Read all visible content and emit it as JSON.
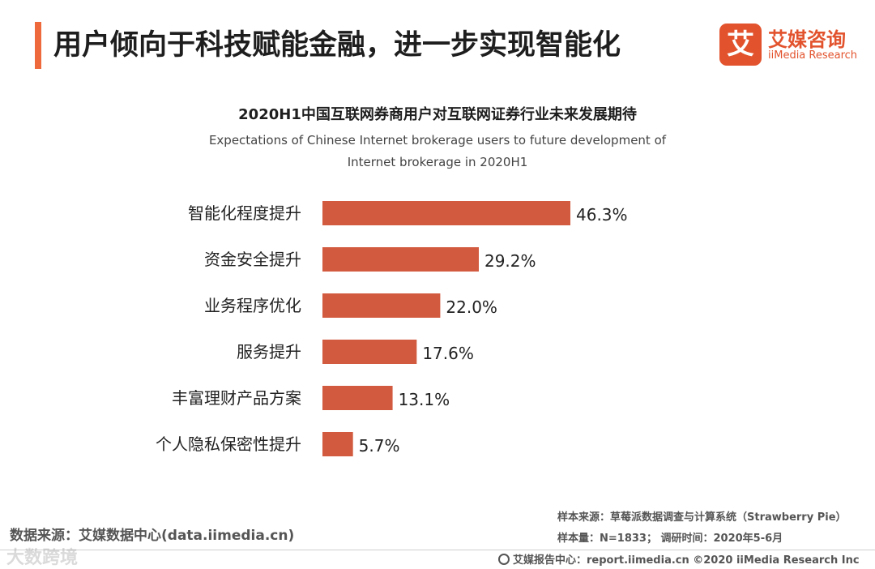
{
  "header": {
    "title": "用户倾向于科技赋能金融，进一步实现智能化",
    "accent_color": "#ee6a3c"
  },
  "logo": {
    "mark": "艾",
    "name_cn": "艾媒咨询",
    "name_en": "iiMedia Research",
    "color": "#e2532d"
  },
  "chart_data": {
    "type": "bar",
    "orientation": "horizontal",
    "title": "2020H1中国互联网券商用户对互联网证券行业未来发展期待",
    "subtitle_line1": "Expectations of Chinese Internet brokerage users to future development of",
    "subtitle_line2": "Internet brokerage in 2020H1",
    "categories": [
      "智能化程度提升",
      "资金安全提升",
      "业务程序优化",
      "服务提升",
      "丰富理财产品方案",
      "个人隐私保密性提升"
    ],
    "values": [
      46.3,
      29.2,
      22.0,
      17.6,
      13.1,
      5.7
    ],
    "value_labels": [
      "46.3%",
      "29.2%",
      "22.0%",
      "17.6%",
      "13.1%",
      "5.7%"
    ],
    "unit": "%",
    "bar_color": "#d25a3e",
    "xlim": [
      0,
      46.3
    ],
    "grid": false,
    "legend": "none"
  },
  "footer": {
    "source_left": "数据来源：艾媒数据中心(data.iimedia.cn)",
    "sample_source": "样本来源：草莓派数据调查与计算系统（Strawberry Pie）",
    "sample_size": "样本量：N=1833；  调研时间：2020年5-6月",
    "report_center": "艾媒报告中心：report.iimedia.cn  ©2020  iiMedia Research  Inc",
    "watermark": "大数跨境"
  }
}
